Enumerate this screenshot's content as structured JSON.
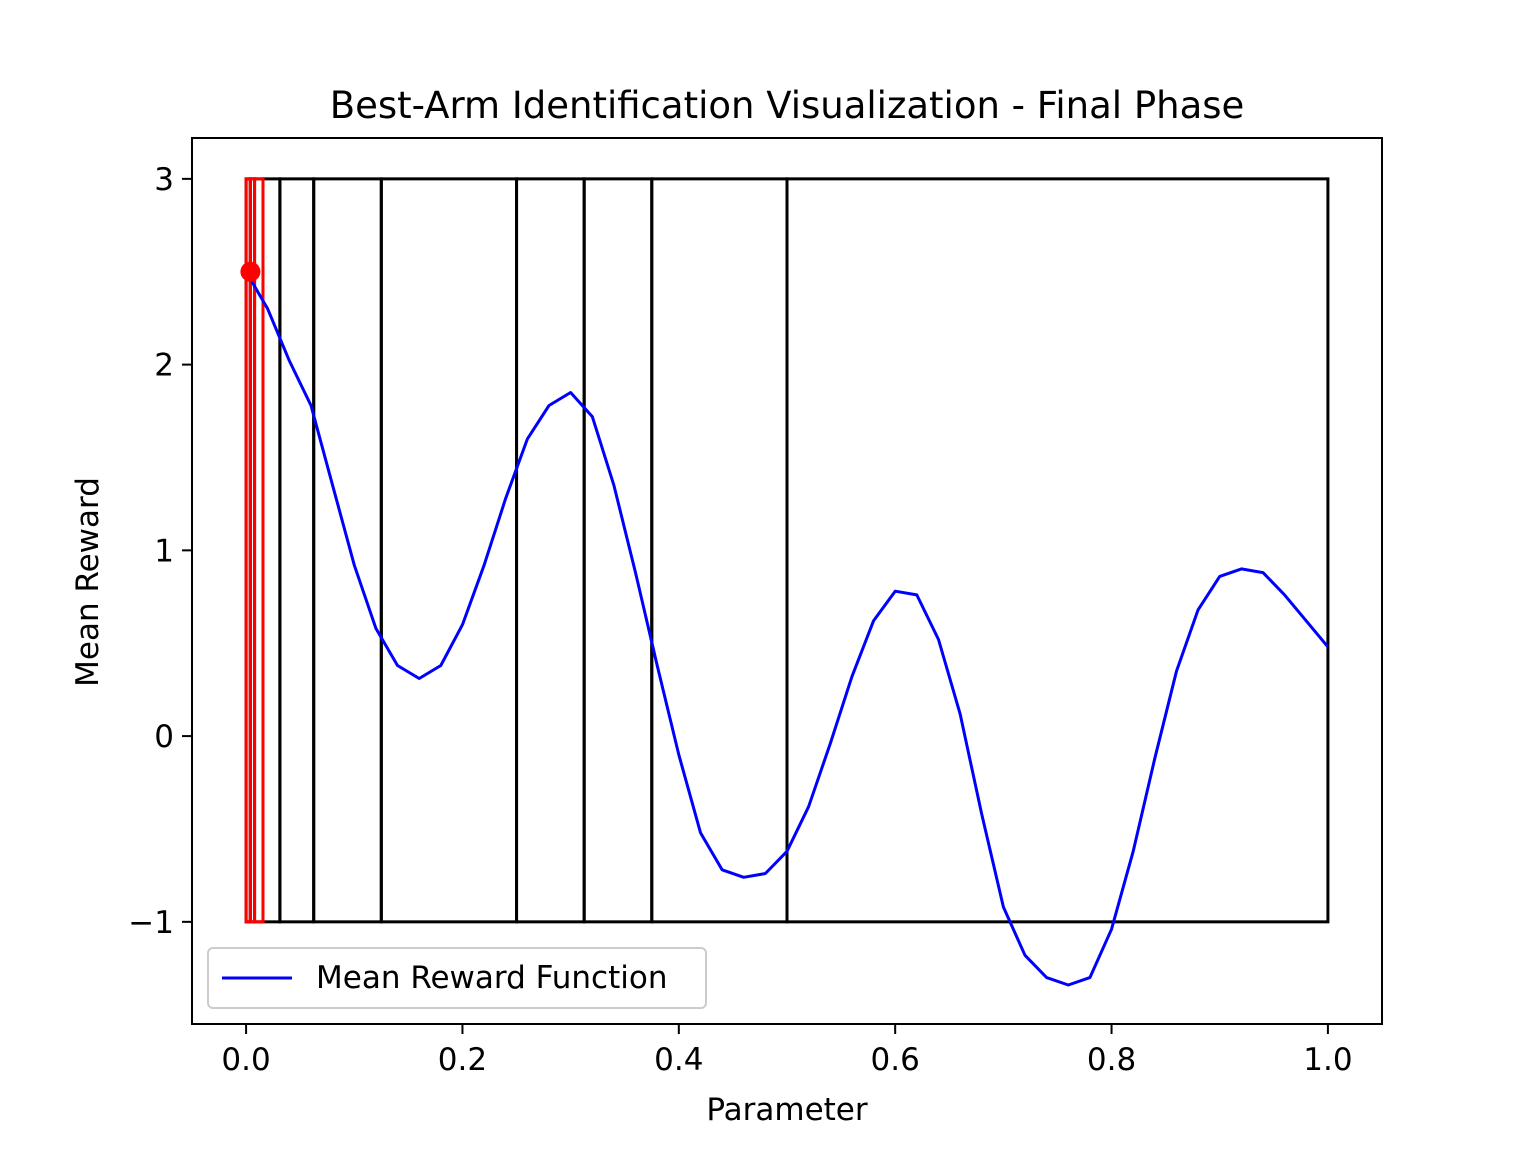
{
  "chart_data": {
    "type": "line",
    "title": "Best-Arm Identification Visualization - Final Phase",
    "xlabel": "Parameter",
    "ylabel": "Mean Reward",
    "xlim": [
      -0.05,
      1.05
    ],
    "ylim": [
      -1.55,
      3.22
    ],
    "x_ticks": [
      0.0,
      0.2,
      0.4,
      0.6,
      0.8,
      1.0
    ],
    "x_tick_labels": [
      "0.0",
      "0.2",
      "0.4",
      "0.6",
      "0.8",
      "1.0"
    ],
    "y_ticks": [
      -1,
      0,
      1,
      2,
      3
    ],
    "y_tick_labels": [
      "−1",
      "0",
      "1",
      "2",
      "3"
    ],
    "grid": false,
    "legend": {
      "position": "lower-left",
      "entries": [
        {
          "label": "Mean Reward Function",
          "color": "#0000ff"
        }
      ]
    },
    "series": [
      {
        "name": "Mean Reward Function",
        "color": "#0000ff",
        "x": [
          0.0,
          0.02,
          0.04,
          0.06,
          0.08,
          0.1,
          0.12,
          0.14,
          0.16,
          0.18,
          0.2,
          0.22,
          0.24,
          0.26,
          0.28,
          0.3,
          0.32,
          0.34,
          0.36,
          0.38,
          0.4,
          0.42,
          0.44,
          0.46,
          0.48,
          0.5,
          0.52,
          0.54,
          0.56,
          0.58,
          0.6,
          0.62,
          0.64,
          0.66,
          0.68,
          0.7,
          0.72,
          0.74,
          0.76,
          0.78,
          0.8,
          0.82,
          0.84,
          0.86,
          0.88,
          0.9,
          0.92,
          0.94,
          0.96,
          0.98,
          1.0
        ],
        "y": [
          2.5,
          2.3,
          2.02,
          1.78,
          1.35,
          0.92,
          0.58,
          0.38,
          0.31,
          0.38,
          0.6,
          0.92,
          1.28,
          1.6,
          1.78,
          1.85,
          1.72,
          1.35,
          0.88,
          0.38,
          -0.1,
          -0.52,
          -0.72,
          -0.76,
          -0.74,
          -0.62,
          -0.38,
          -0.04,
          0.32,
          0.62,
          0.78,
          0.76,
          0.52,
          0.12,
          -0.42,
          -0.92,
          -1.18,
          -1.3,
          -1.34,
          -1.3,
          -1.04,
          -0.62,
          -0.12,
          0.35,
          0.68,
          0.86,
          0.9,
          0.88,
          0.76,
          0.62,
          0.48
        ]
      }
    ],
    "arm_boundaries": [
      0.0,
      0.00390625,
      0.0078125,
      0.015625,
      0.03125,
      0.0625,
      0.125,
      0.25,
      0.3125,
      0.375,
      0.5,
      1.0
    ],
    "best_arm_boundaries": [
      0.0,
      0.00390625,
      0.0078125,
      0.015625
    ],
    "interval_y": [
      -1,
      3
    ],
    "interval_color": "#000000",
    "best_interval_color": "#ff0000",
    "best_point": {
      "x": 0.004,
      "y": 2.5,
      "color": "#ff0000"
    }
  }
}
